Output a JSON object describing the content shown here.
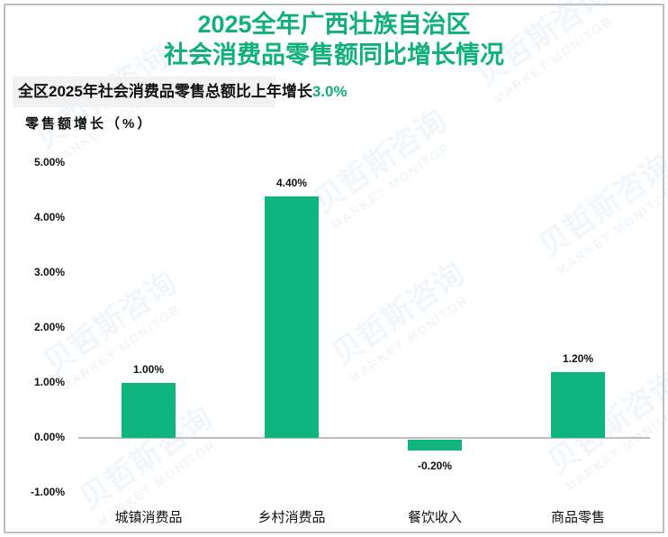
{
  "title": {
    "line1": "2025全年广西壮族自治区",
    "line2": "社会消费品零售额同比增长情况"
  },
  "subtitle": {
    "text": "全区2025年社会消费品零售总额比上年增长",
    "highlight": "3.0%"
  },
  "watermark": {
    "cn": "贝哲斯咨询",
    "en": "MARKET MONITOR"
  },
  "colors": {
    "accent": "#10b07c",
    "bar": "#10b47f",
    "axis": "#bfbfbf",
    "subtitle_bg": "#f2f2f2"
  },
  "chart_data": {
    "type": "bar",
    "title": "2025全年广西壮族自治区社会消费品零售额同比增长情况",
    "subtitle": "全区2025年社会消费品零售总额比上年增长3.0%",
    "xlabel": "",
    "ylabel": "零售额增长（%）",
    "categories": [
      "城镇消费品",
      "乡村消费品",
      "餐饮收入",
      "商品零售"
    ],
    "values": [
      1.0,
      4.4,
      -0.2,
      1.2
    ],
    "value_labels": [
      "1.00%",
      "4.40%",
      "-0.20%",
      "1.20%"
    ],
    "yticks": [
      "5.00%",
      "4.00%",
      "3.00%",
      "2.00%",
      "1.00%",
      "0.00%",
      "-1.00%"
    ],
    "ylim": [
      -1.0,
      5.0
    ],
    "grid": false,
    "legend": null
  }
}
